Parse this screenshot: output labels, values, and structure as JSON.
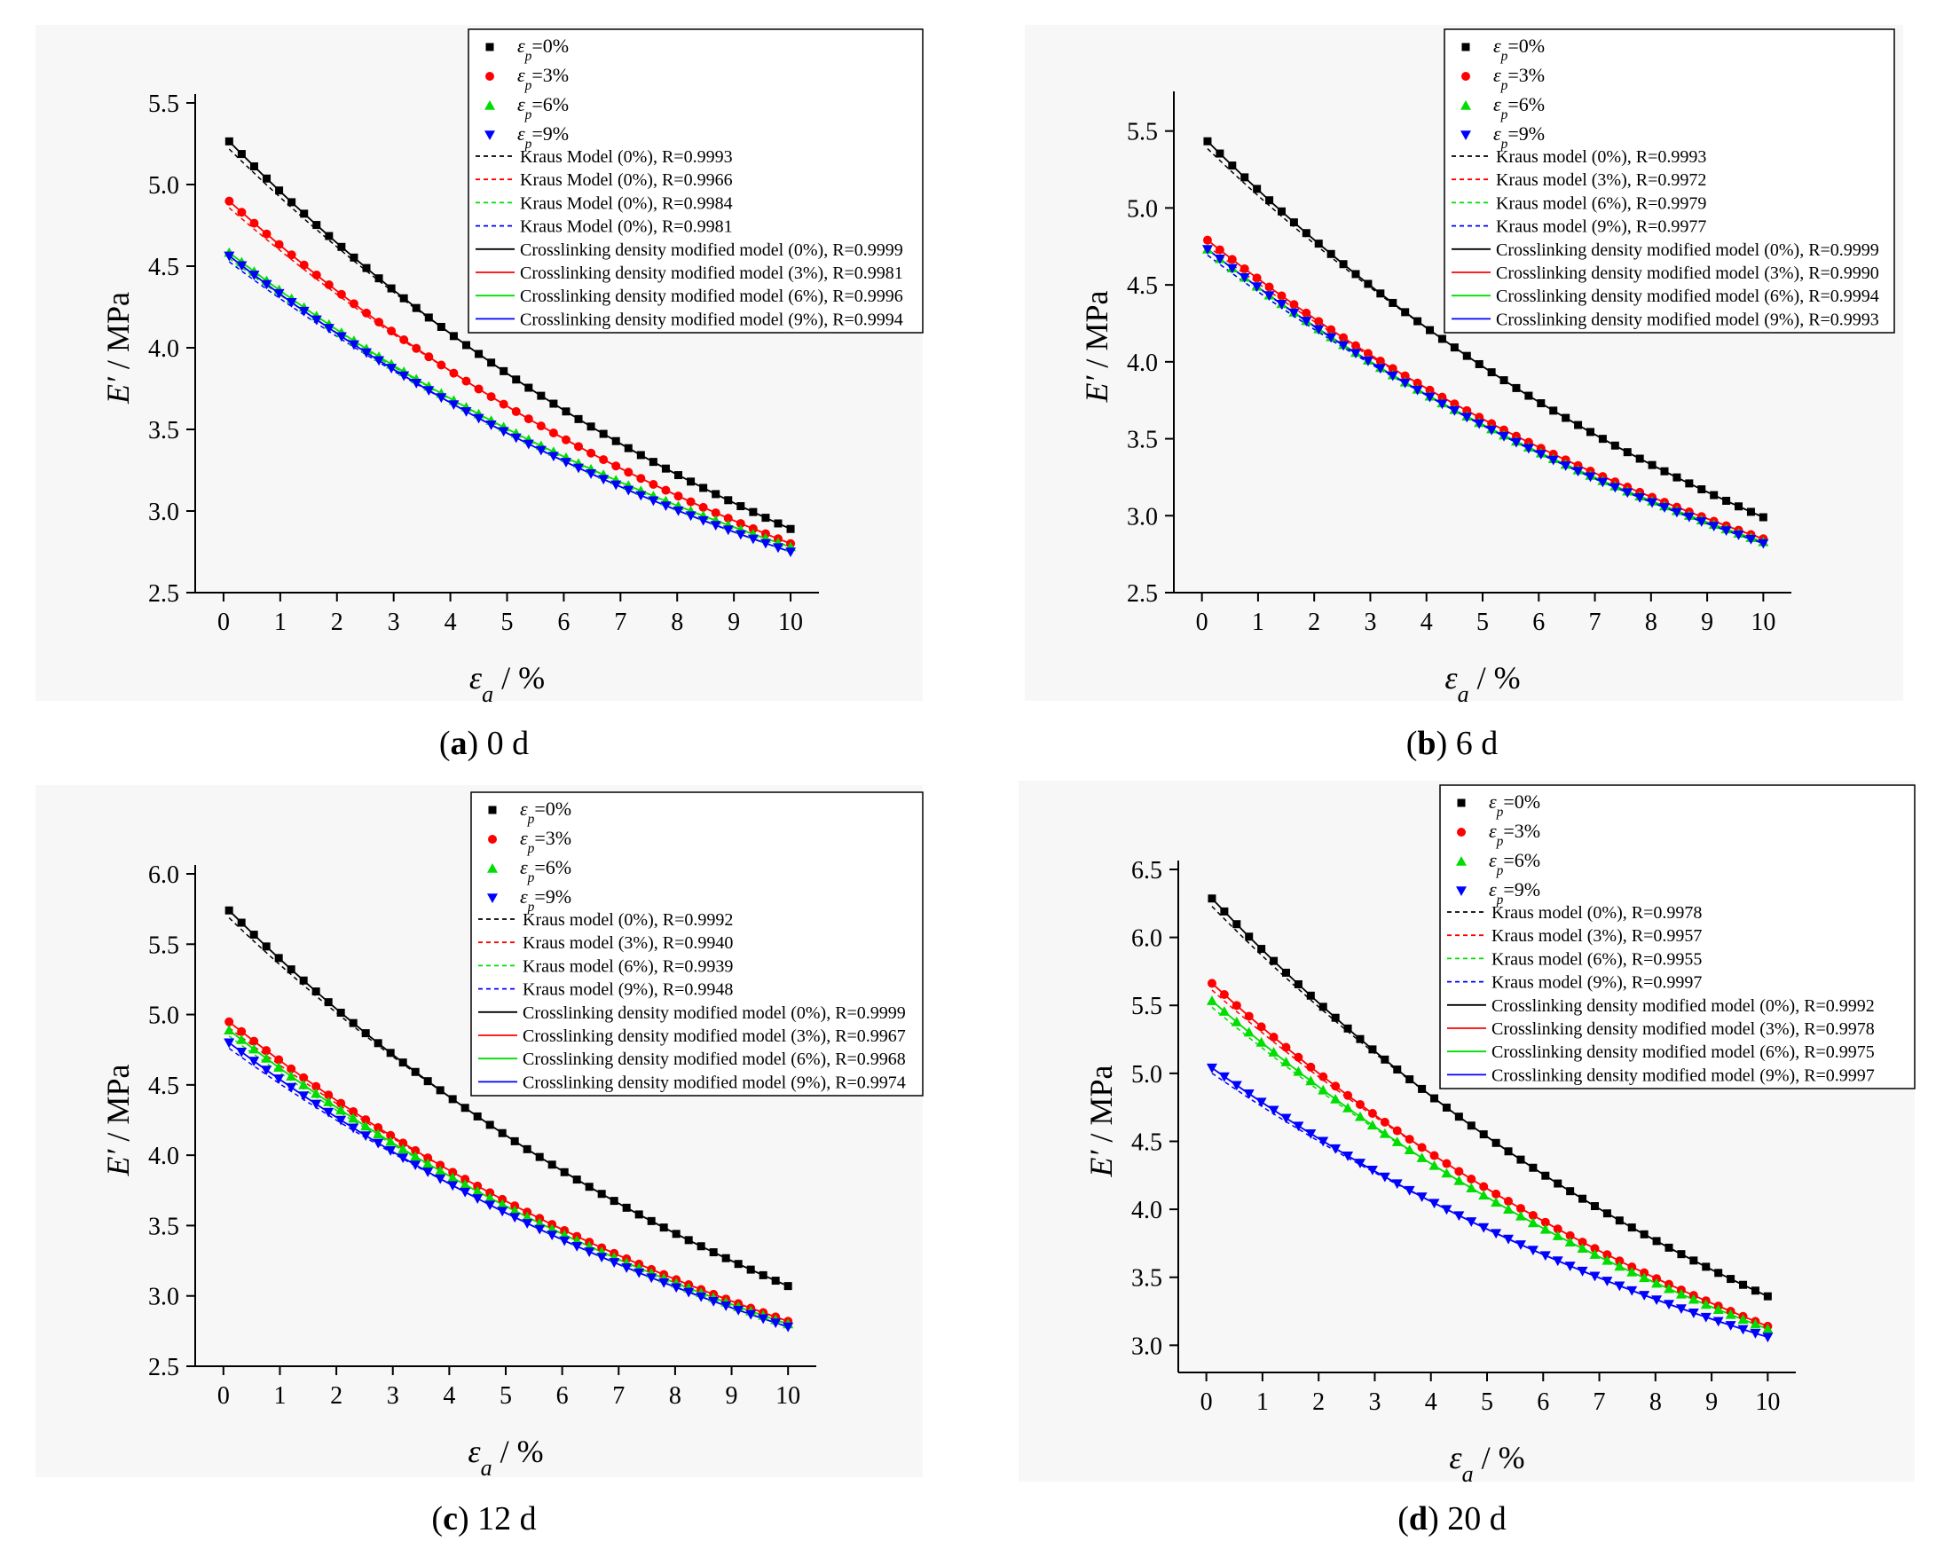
{
  "chart_data": [
    {
      "type": "scatter",
      "caption": {
        "letter": "a",
        "text": " 0 d"
      },
      "xlabel": "ε_a / %",
      "ylabel": "E′ / MPa",
      "xlim": [
        -0.5,
        10.5
      ],
      "ylim": [
        2.5,
        5.5
      ],
      "xticks": [
        0,
        1,
        2,
        3,
        4,
        5,
        6,
        7,
        8,
        9,
        10
      ],
      "yticks": [
        2.5,
        3.0,
        3.5,
        4.0,
        4.5,
        5.0,
        5.5
      ],
      "ytick_labels": [
        "2.5",
        "3.0",
        "3.5",
        "4.0",
        "4.5",
        "5.0",
        "5.5"
      ],
      "legend_position": "top-right",
      "series": [
        {
          "name": "ε_p=0%",
          "marker": "square",
          "color": "#000000",
          "y0": 5.3,
          "y10": 2.89
        },
        {
          "name": "ε_p=3%",
          "marker": "circle",
          "color": "#ff0000",
          "y0": 4.93,
          "y10": 2.8
        },
        {
          "name": "ε_p=6%",
          "marker": "triangle-up",
          "color": "#00dd00",
          "y0": 4.61,
          "y10": 2.78
        },
        {
          "name": "ε_p=9%",
          "marker": "triangle-down",
          "color": "#0000ff",
          "y0": 4.59,
          "y10": 2.75
        }
      ],
      "fits": [
        {
          "label": "Kraus Model (0%), R=0.9993",
          "style": "dashed",
          "color": "#000000"
        },
        {
          "label": "Kraus Model (0%), R=0.9966",
          "style": "dashed",
          "color": "#ff0000"
        },
        {
          "label": "Kraus Model (0%), R=0.9984",
          "style": "dashed",
          "color": "#00dd00"
        },
        {
          "label": "Kraus Model (0%), R=0.9981",
          "style": "dashed",
          "color": "#0000ff"
        },
        {
          "label": "Crosslinking density modified model (0%), R=0.9999",
          "style": "solid",
          "color": "#000000"
        },
        {
          "label": "Crosslinking density modified model (3%), R=0.9981",
          "style": "solid",
          "color": "#ff0000"
        },
        {
          "label": "Crosslinking density modified model (6%), R=0.9996",
          "style": "solid",
          "color": "#00dd00"
        },
        {
          "label": "Crosslinking density modified model (9%), R=0.9994",
          "style": "solid",
          "color": "#0000ff"
        }
      ]
    },
    {
      "type": "scatter",
      "caption": {
        "letter": "b",
        "text": " 6 d"
      },
      "xlabel": "ε_a / %",
      "ylabel": "E′ / MPa",
      "xlim": [
        -0.5,
        10.5
      ],
      "ylim": [
        2.5,
        5.7
      ],
      "xticks": [
        0,
        1,
        2,
        3,
        4,
        5,
        6,
        7,
        8,
        9,
        10
      ],
      "yticks": [
        2.5,
        3.0,
        3.5,
        4.0,
        4.5,
        5.0,
        5.5
      ],
      "ytick_labels": [
        "2.5",
        "3.0",
        "3.5",
        "4.0",
        "4.5",
        "5.0",
        "5.5"
      ],
      "legend_position": "top-right",
      "series": [
        {
          "name": "ε_p=0%",
          "marker": "square",
          "color": "#000000",
          "y0": 5.47,
          "y10": 2.99
        },
        {
          "name": "ε_p=3%",
          "marker": "circle",
          "color": "#ff0000",
          "y0": 4.82,
          "y10": 2.85
        },
        {
          "name": "ε_p=6%",
          "marker": "triangle-up",
          "color": "#00dd00",
          "y0": 4.76,
          "y10": 2.83
        },
        {
          "name": "ε_p=9%",
          "marker": "triangle-down",
          "color": "#0000ff",
          "y0": 4.76,
          "y10": 2.82
        }
      ],
      "fits": [
        {
          "label": "Kraus model (0%), R=0.9993",
          "style": "dashed",
          "color": "#000000"
        },
        {
          "label": "Kraus model (3%), R=0.9972",
          "style": "dashed",
          "color": "#ff0000"
        },
        {
          "label": "Kraus model (6%), R=0.9979",
          "style": "dashed",
          "color": "#00dd00"
        },
        {
          "label": "Kraus model (9%), R=0.9977",
          "style": "dashed",
          "color": "#0000ff"
        },
        {
          "label": "Crosslinking density modified model (0%), R=0.9999",
          "style": "solid",
          "color": "#000000"
        },
        {
          "label": "Crosslinking density modified model (3%), R=0.9990",
          "style": "solid",
          "color": "#ff0000"
        },
        {
          "label": "Crosslinking density modified model (6%), R=0.9994",
          "style": "solid",
          "color": "#00dd00"
        },
        {
          "label": "Crosslinking density modified model (9%), R=0.9993",
          "style": "solid",
          "color": "#0000ff"
        }
      ]
    },
    {
      "type": "scatter",
      "caption": {
        "letter": "c",
        "text": " 12 d"
      },
      "xlabel": "ε_a / %",
      "ylabel": "E′ / MPa",
      "xlim": [
        -0.5,
        10.5
      ],
      "ylim": [
        2.5,
        6.0
      ],
      "xticks": [
        0,
        1,
        2,
        3,
        4,
        5,
        6,
        7,
        8,
        9,
        10
      ],
      "yticks": [
        2.5,
        3.0,
        3.5,
        4.0,
        4.5,
        5.0,
        5.5,
        6.0
      ],
      "ytick_labels": [
        "2.5",
        "3.0",
        "3.5",
        "4.0",
        "4.5",
        "5.0",
        "5.5",
        "6.0"
      ],
      "legend_position": "top-right",
      "series": [
        {
          "name": "ε_p=0%",
          "marker": "square",
          "color": "#000000",
          "y0": 5.78,
          "y10": 3.07
        },
        {
          "name": "ε_p=3%",
          "marker": "circle",
          "color": "#ff0000",
          "y0": 4.98,
          "y10": 2.82
        },
        {
          "name": "ε_p=6%",
          "marker": "triangle-up",
          "color": "#00dd00",
          "y0": 4.92,
          "y10": 2.8
        },
        {
          "name": "ε_p=9%",
          "marker": "triangle-down",
          "color": "#0000ff",
          "y0": 4.83,
          "y10": 2.78
        }
      ],
      "fits": [
        {
          "label": "Kraus model (0%), R=0.9992",
          "style": "dashed",
          "color": "#000000"
        },
        {
          "label": "Kraus model (3%), R=0.9940",
          "style": "dashed",
          "color": "#ff0000"
        },
        {
          "label": "Kraus model (6%), R=0.9939",
          "style": "dashed",
          "color": "#00dd00"
        },
        {
          "label": "Kraus model (9%), R=0.9948",
          "style": "dashed",
          "color": "#0000ff"
        },
        {
          "label": "Crosslinking density modified model (0%), R=0.9999",
          "style": "solid",
          "color": "#000000"
        },
        {
          "label": "Crosslinking density modified model (3%), R=0.9967",
          "style": "solid",
          "color": "#ff0000"
        },
        {
          "label": "Crosslinking density modified model (6%), R=0.9968",
          "style": "solid",
          "color": "#00dd00"
        },
        {
          "label": "Crosslinking density modified model (9%), R=0.9974",
          "style": "solid",
          "color": "#0000ff"
        }
      ]
    },
    {
      "type": "scatter",
      "caption": {
        "letter": "d",
        "text": " 20 d"
      },
      "xlabel": "ε_a / %",
      "ylabel": "E′ / MPa",
      "xlim": [
        -0.5,
        10.5
      ],
      "ylim": [
        2.8,
        6.5
      ],
      "xticks": [
        0,
        1,
        2,
        3,
        4,
        5,
        6,
        7,
        8,
        9,
        10
      ],
      "yticks": [
        3.0,
        3.5,
        4.0,
        4.5,
        5.0,
        5.5,
        6.0,
        6.5
      ],
      "ytick_labels": [
        "3.0",
        "3.5",
        "4.0",
        "4.5",
        "5.0",
        "5.5",
        "6.0",
        "6.5"
      ],
      "legend_position": "top-right",
      "series": [
        {
          "name": "ε_p=0%",
          "marker": "square",
          "color": "#000000",
          "y0": 6.33,
          "y10": 3.36
        },
        {
          "name": "ε_p=3%",
          "marker": "circle",
          "color": "#ff0000",
          "y0": 5.7,
          "y10": 3.14
        },
        {
          "name": "ε_p=6%",
          "marker": "triangle-up",
          "color": "#00dd00",
          "y0": 5.57,
          "y10": 3.12
        },
        {
          "name": "ε_p=9%",
          "marker": "triangle-down",
          "color": "#0000ff",
          "y0": 5.07,
          "y10": 3.06
        }
      ],
      "fits": [
        {
          "label": "Kraus model (0%), R=0.9978",
          "style": "dashed",
          "color": "#000000"
        },
        {
          "label": "Kraus model (3%), R=0.9957",
          "style": "dashed",
          "color": "#ff0000"
        },
        {
          "label": "Kraus model (6%), R=0.9955",
          "style": "dashed",
          "color": "#00dd00"
        },
        {
          "label": "Kraus model (9%), R=0.9997",
          "style": "dashed",
          "color": "#0000ff"
        },
        {
          "label": "Crosslinking density modified model (0%), R=0.9992",
          "style": "solid",
          "color": "#000000"
        },
        {
          "label": "Crosslinking density modified model (3%), R=0.9978",
          "style": "solid",
          "color": "#ff0000"
        },
        {
          "label": "Crosslinking density modified model (6%), R=0.9975",
          "style": "solid",
          "color": "#00dd00"
        },
        {
          "label": "Crosslinking density modified model (9%), R=0.9997",
          "style": "solid",
          "color": "#0000ff"
        }
      ]
    }
  ]
}
